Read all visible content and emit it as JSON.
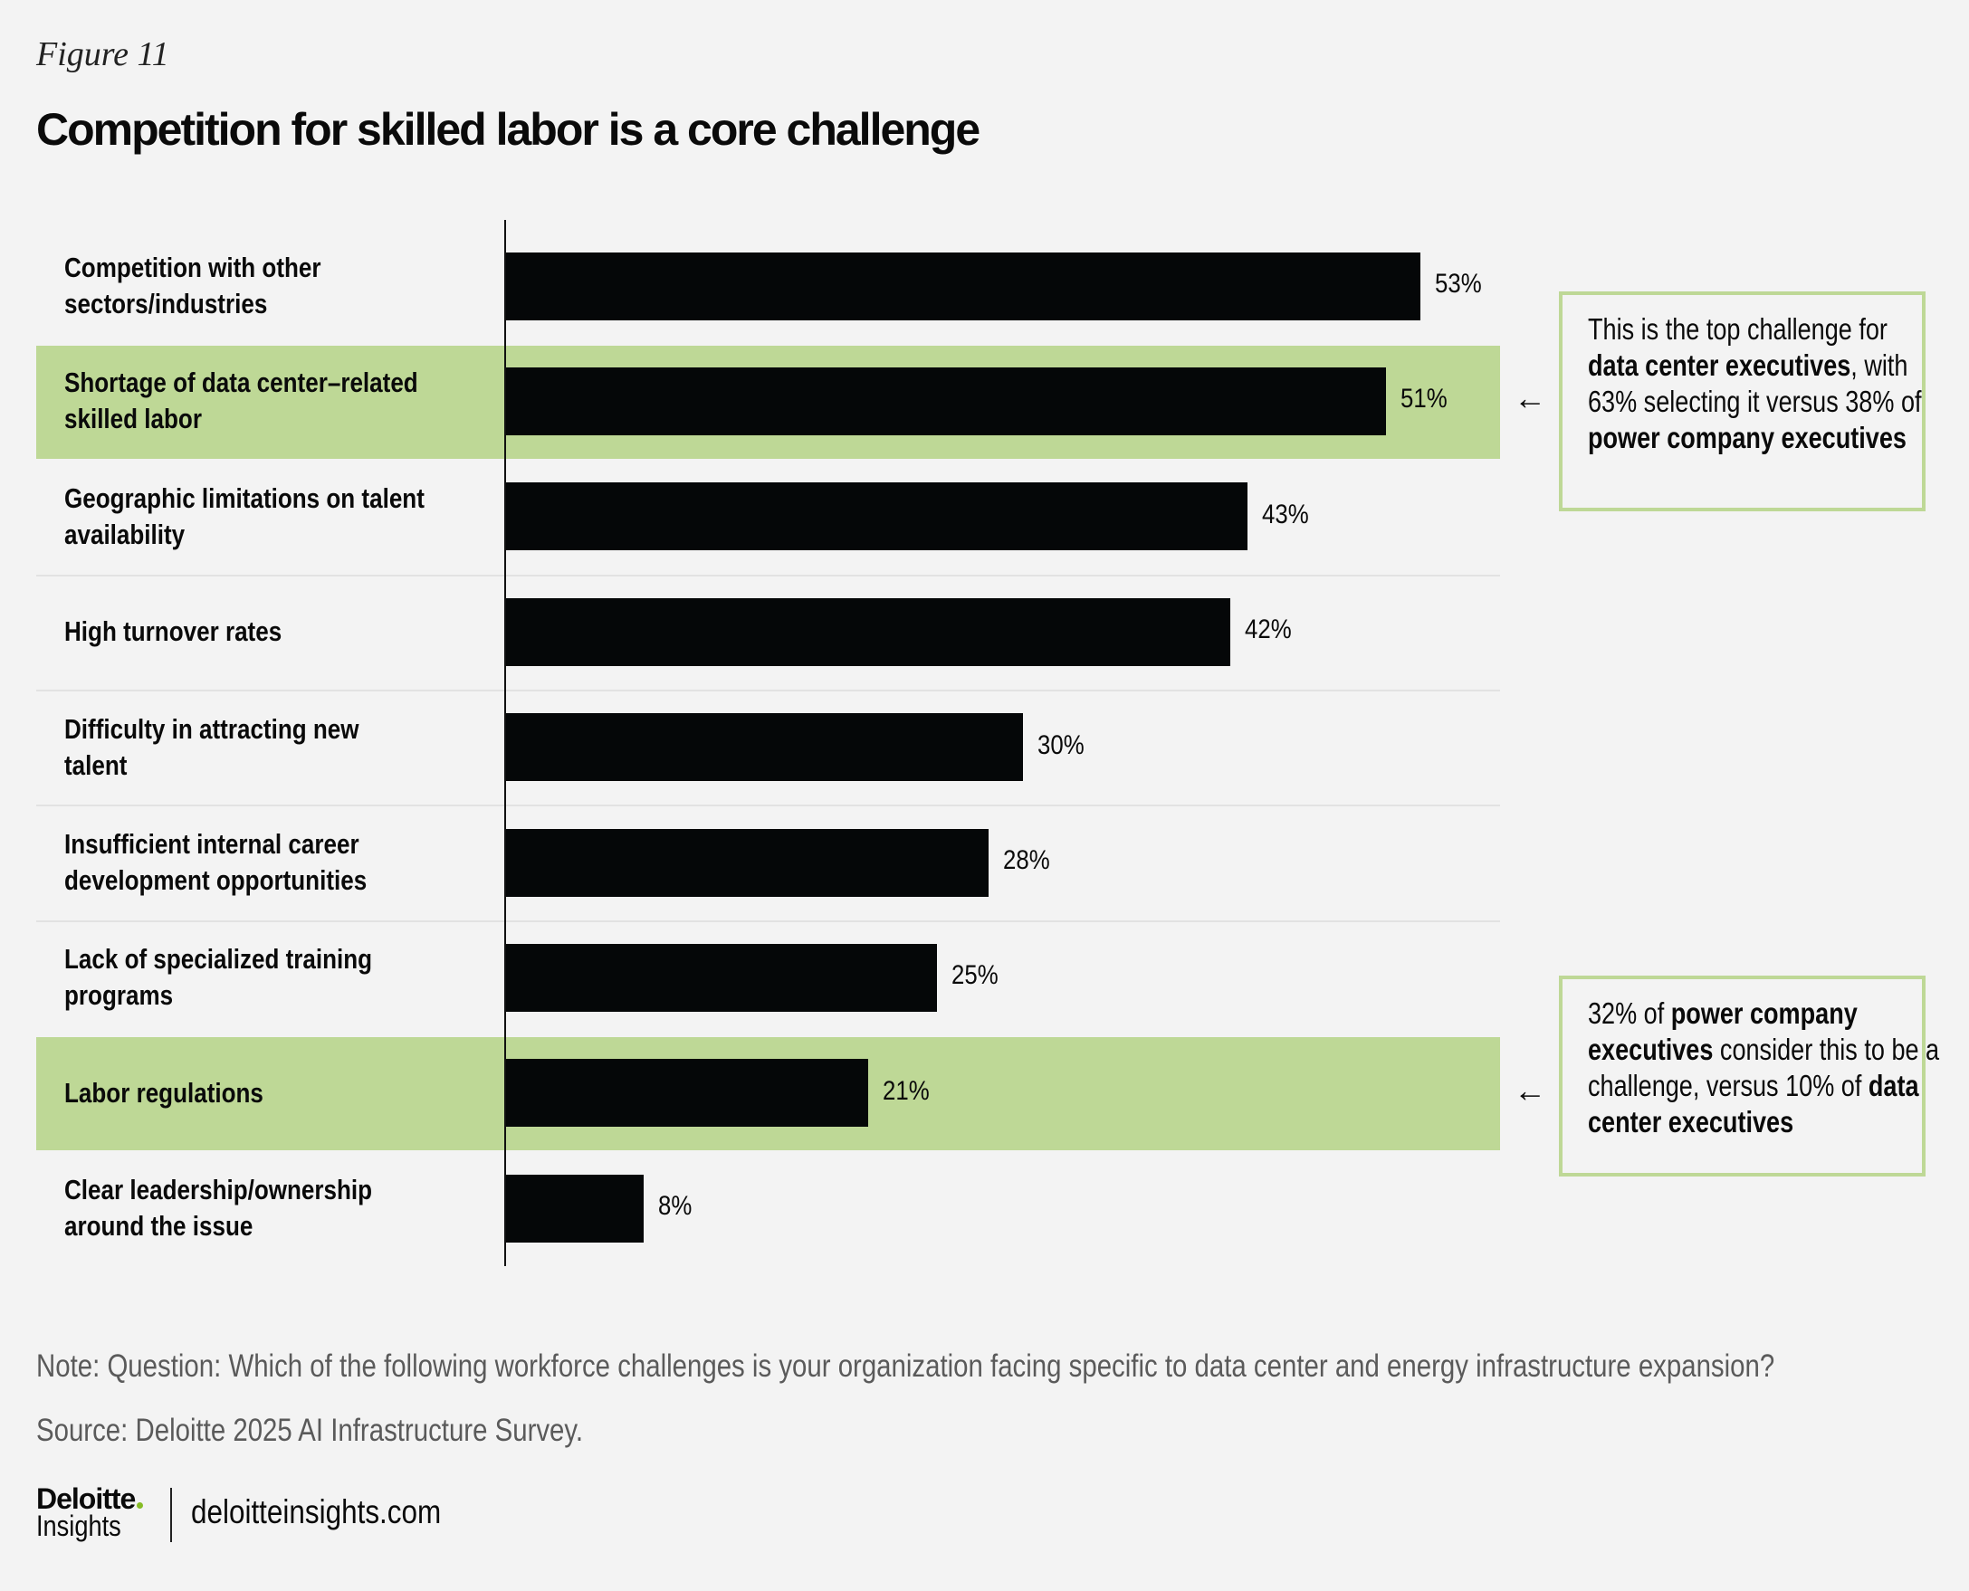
{
  "figure_label": "Figure 11",
  "chart_data": {
    "type": "bar",
    "orientation": "horizontal",
    "title": "Competition for skilled labor is a core challenge",
    "categories": [
      "Competition with other sectors/industries",
      "Shortage of data center–related skilled labor",
      "Geographic limitations on talent availability",
      "High turnover rates",
      "Difficulty in attracting new talent",
      "Insufficient internal career development opportunities",
      "Lack of specialized training programs",
      "Labor regulations",
      "Clear leadership/ownership around the issue"
    ],
    "label_lines": [
      [
        "Competition with other",
        "sectors/industries"
      ],
      [
        "Shortage of data center–related",
        "skilled labor"
      ],
      [
        "Geographic limitations on talent",
        "availability"
      ],
      [
        "High turnover rates"
      ],
      [
        "Difficulty in attracting new",
        "talent"
      ],
      [
        "Insufficient internal career",
        "development opportunities"
      ],
      [
        "Lack of specialized training",
        "programs"
      ],
      [
        "Labor regulations"
      ],
      [
        "Clear leadership/ownership",
        "around the issue"
      ]
    ],
    "values": [
      53,
      51,
      43,
      42,
      30,
      28,
      25,
      21,
      8
    ],
    "value_labels": [
      "53%",
      "51%",
      "43%",
      "42%",
      "30%",
      "28%",
      "25%",
      "21%",
      "8%"
    ],
    "highlighted": [
      1,
      7
    ],
    "unit": "%",
    "xlim": [
      0,
      60
    ],
    "xlabel": "",
    "ylabel": ""
  },
  "callouts": [
    {
      "row": 1,
      "arrow": "←",
      "parts": [
        {
          "t": "This is the top challenge for ",
          "b": false
        },
        {
          "t": "data center executives",
          "b": true
        },
        {
          "t": ", with 63% selecting it versus 38% of ",
          "b": false
        },
        {
          "t": "power company executives",
          "b": true
        }
      ]
    },
    {
      "row": 7,
      "arrow": "←",
      "parts": [
        {
          "t": "32% of ",
          "b": false
        },
        {
          "t": "power company executives",
          "b": true
        },
        {
          "t": " consider this to be a challenge, versus 10% of ",
          "b": false
        },
        {
          "t": "data center executives",
          "b": true
        }
      ]
    }
  ],
  "note": "Note: Question: Which of the following workforce challenges is your organization facing specific to data center and energy infrastructure expansion?",
  "source": "Source: Deloitte 2025 AI Infrastructure Survey.",
  "logo": {
    "line1": "Deloitte",
    "line2": "Insights"
  },
  "url": "deloitteinsights.com",
  "colors": {
    "bar": "#050708",
    "highlight": "#bed896",
    "accent_dot": "#86bc25",
    "background": "#f3f3f3"
  }
}
